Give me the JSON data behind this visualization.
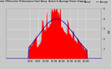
{
  "title": "Solar PV/Inverter Performance East Array  Actual & Average Power Output",
  "bg_color": "#c8c8c8",
  "plot_bg_color": "#c8c8c8",
  "grid_color": "#ffffff",
  "actual_color": "#ff0000",
  "avg_color": "#0000cc",
  "actual_label": "Actual",
  "avg_label": "Average",
  "ylim": [
    0,
    5
  ],
  "xlim": [
    0,
    288
  ],
  "ytick_labels": [
    "5",
    "4",
    "3",
    "2",
    "1",
    ""
  ],
  "ytick_vals": [
    5,
    4,
    3,
    2,
    1,
    0
  ],
  "xtick_labels": [
    "6:00",
    "8:00",
    "10:00",
    "12:00",
    "14:00",
    "16:00",
    "18:00",
    "20:00"
  ],
  "xtick_positions": [
    72,
    96,
    120,
    144,
    168,
    192,
    216,
    240
  ],
  "num_points": 288
}
